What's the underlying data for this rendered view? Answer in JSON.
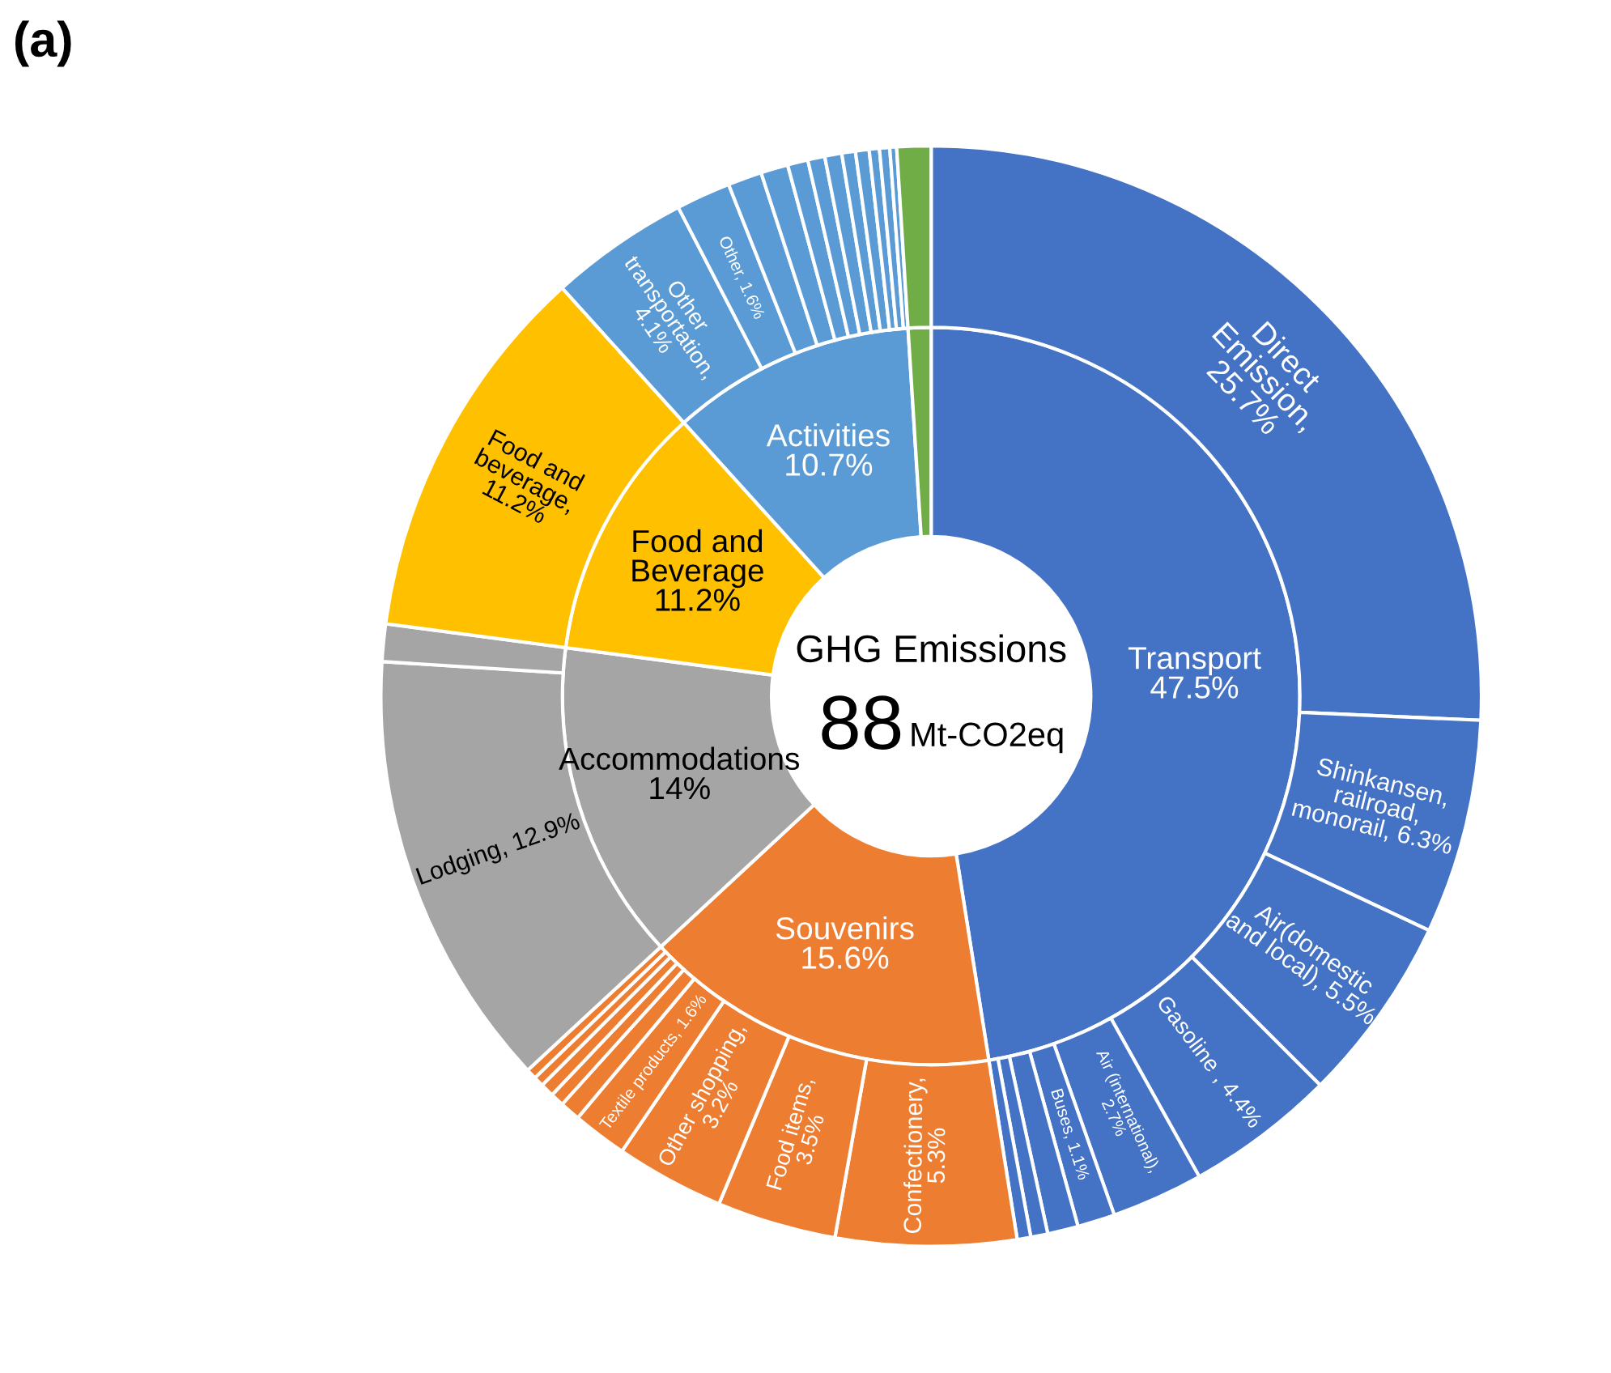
{
  "chart_data": {
    "type": "donut",
    "annotations": [
      "(a)",
      "GHG Emissions",
      "88",
      "Mt-CO2eq"
    ],
    "series": [
      {
        "values": [
          47.5,
          15.6,
          14,
          11.2,
          10.7,
          1.0
        ],
        "colors": [
          "#4472c4",
          "#ed7d31",
          "#a5a5a5",
          "#ffc000",
          "#5b9bd5",
          "#70ad47"
        ],
        "value_labels": [
          "Transport\n47.5%",
          "Souvenirs\n15.6%",
          "Accommodations\n14%",
          "Food and\nBeverage\n11.2%",
          "Activities\n10.7%",
          null
        ]
      },
      {
        "values": [
          25.7,
          6.3,
          5.5,
          4.4,
          2.7,
          1.1,
          0.9,
          0.5,
          0.4,
          5.3,
          3.5,
          3.2,
          1.6,
          0.6,
          0.4,
          0.4,
          0.3,
          0.3,
          12.9,
          1.1,
          11.2,
          4.1,
          1.6,
          1.0,
          0.8,
          0.6,
          0.5,
          0.5,
          0.4,
          0.4,
          0.3,
          0.3,
          0.2,
          1.0
        ],
        "colors": [
          "#4472c4",
          "#4472c4",
          "#4472c4",
          "#4472c4",
          "#4472c4",
          "#4472c4",
          "#4472c4",
          "#4472c4",
          "#4472c4",
          "#ed7d31",
          "#ed7d31",
          "#ed7d31",
          "#ed7d31",
          "#ed7d31",
          "#ed7d31",
          "#ed7d31",
          "#ed7d31",
          "#ed7d31",
          "#a5a5a5",
          "#a5a5a5",
          "#ffc000",
          "#5b9bd5",
          "#5b9bd5",
          "#5b9bd5",
          "#5b9bd5",
          "#5b9bd5",
          "#5b9bd5",
          "#5b9bd5",
          "#5b9bd5",
          "#5b9bd5",
          "#5b9bd5",
          "#5b9bd5",
          "#5b9bd5",
          "#70ad47"
        ],
        "value_labels": [
          "Direct\nEmission,\n25.7%",
          "Shinkansen,\nrailroad,\nmonorail, 6.3%",
          "Air(domestic\nand local), 5.5%",
          "Gasoline , 4.4%",
          "Air (international),\n2.7%",
          "Buses, 1.1%",
          null,
          null,
          null,
          "Confectionery,\n5.3%",
          "Food items,\n3.5%",
          "Other shopping,\n3.2%",
          "Textile products, 1.6%",
          null,
          null,
          null,
          null,
          null,
          "Lodging, 12.9%",
          null,
          "Food and\nbeverage,\n11.2%",
          "Other\ntransportation,\n4.1%",
          "Other, 1.6%",
          null,
          null,
          null,
          null,
          null,
          null,
          null,
          null,
          null,
          null,
          null
        ]
      }
    ]
  }
}
